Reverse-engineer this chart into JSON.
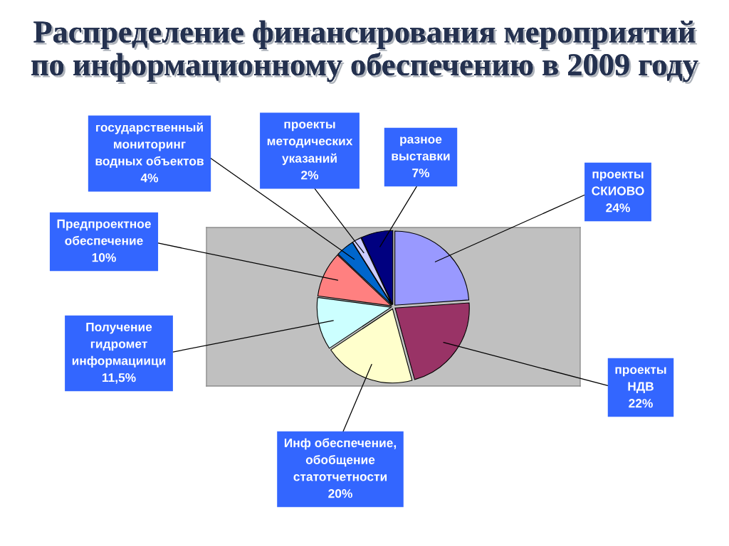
{
  "chart_data": {
    "type": "pie",
    "title": "Распределение финансирования мероприятий\nпо информационному обеспечению в 2009 году",
    "categories": [
      "проекты\nСКИОВО",
      "проекты\nНДВ",
      "Инф обеспечение,\nобобщение\nстатотчетности",
      "Получение\nгидромет\nинформациици",
      "Предпроектное\nобеспечение",
      "государственный\nмониторинг\nводных объектов",
      "проекты\nметодических\nуказаний",
      "разное\nвыставки"
    ],
    "values": [
      24,
      22,
      20,
      11.5,
      10,
      4,
      2,
      7
    ],
    "value_labels": [
      "24%",
      "22%",
      "20%",
      "11,5%",
      "10%",
      "4%",
      "2%",
      "7%"
    ],
    "colors": [
      "#9999ff",
      "#993366",
      "#ffffcc",
      "#ccffff",
      "#ff8080",
      "#0066cc",
      "#ccccff",
      "#000080"
    ]
  }
}
